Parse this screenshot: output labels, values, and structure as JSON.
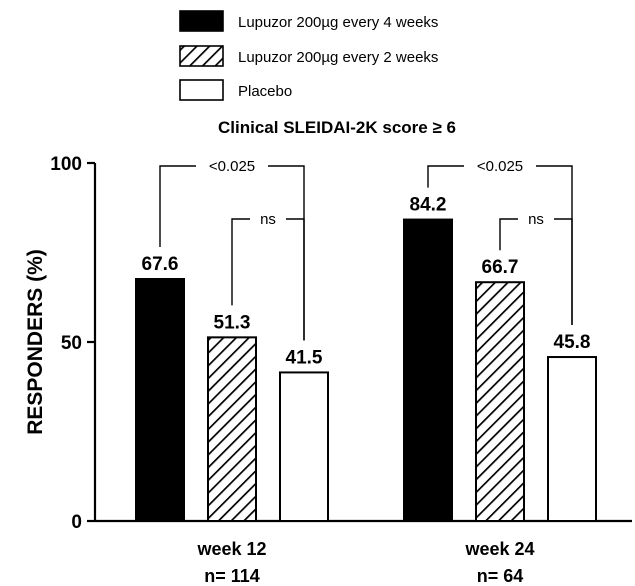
{
  "chart_data": {
    "type": "bar",
    "title": "Clinical SLEIDAI-2K score ≥ 6",
    "xlabel": "",
    "ylabel": "RESPONDERS (%)",
    "ylim": [
      0,
      100
    ],
    "yticks": [
      "0",
      "50",
      "100"
    ],
    "grid": false,
    "legend_position": "top",
    "categories": [
      "week 12",
      "week 24"
    ],
    "category_sublabels": [
      "n= 114",
      "n= 64"
    ],
    "series": [
      {
        "name": "Lupuzor 200µg every 4 weeks",
        "values": [
          67.6,
          84.2
        ],
        "labels": [
          "67.6",
          "84.2"
        ],
        "fill": "solid",
        "color": "#000000"
      },
      {
        "name": "Lupuzor 200µg every 2 weeks",
        "values": [
          51.3,
          66.7
        ],
        "labels": [
          "51.3",
          "66.7"
        ],
        "fill": "hatch",
        "color": "#000000"
      },
      {
        "name": "Placebo",
        "values": [
          41.5,
          45.8
        ],
        "labels": [
          "41.5",
          "45.8"
        ],
        "fill": "none",
        "color": "#ffffff"
      }
    ],
    "annotations": [
      {
        "group": 0,
        "from_series": 0,
        "to_series": 2,
        "text": "<0.025"
      },
      {
        "group": 0,
        "from_series": 1,
        "to_series": 2,
        "text": "ns"
      },
      {
        "group": 1,
        "from_series": 0,
        "to_series": 2,
        "text": "<0.025"
      },
      {
        "group": 1,
        "from_series": 1,
        "to_series": 2,
        "text": "ns"
      }
    ]
  }
}
